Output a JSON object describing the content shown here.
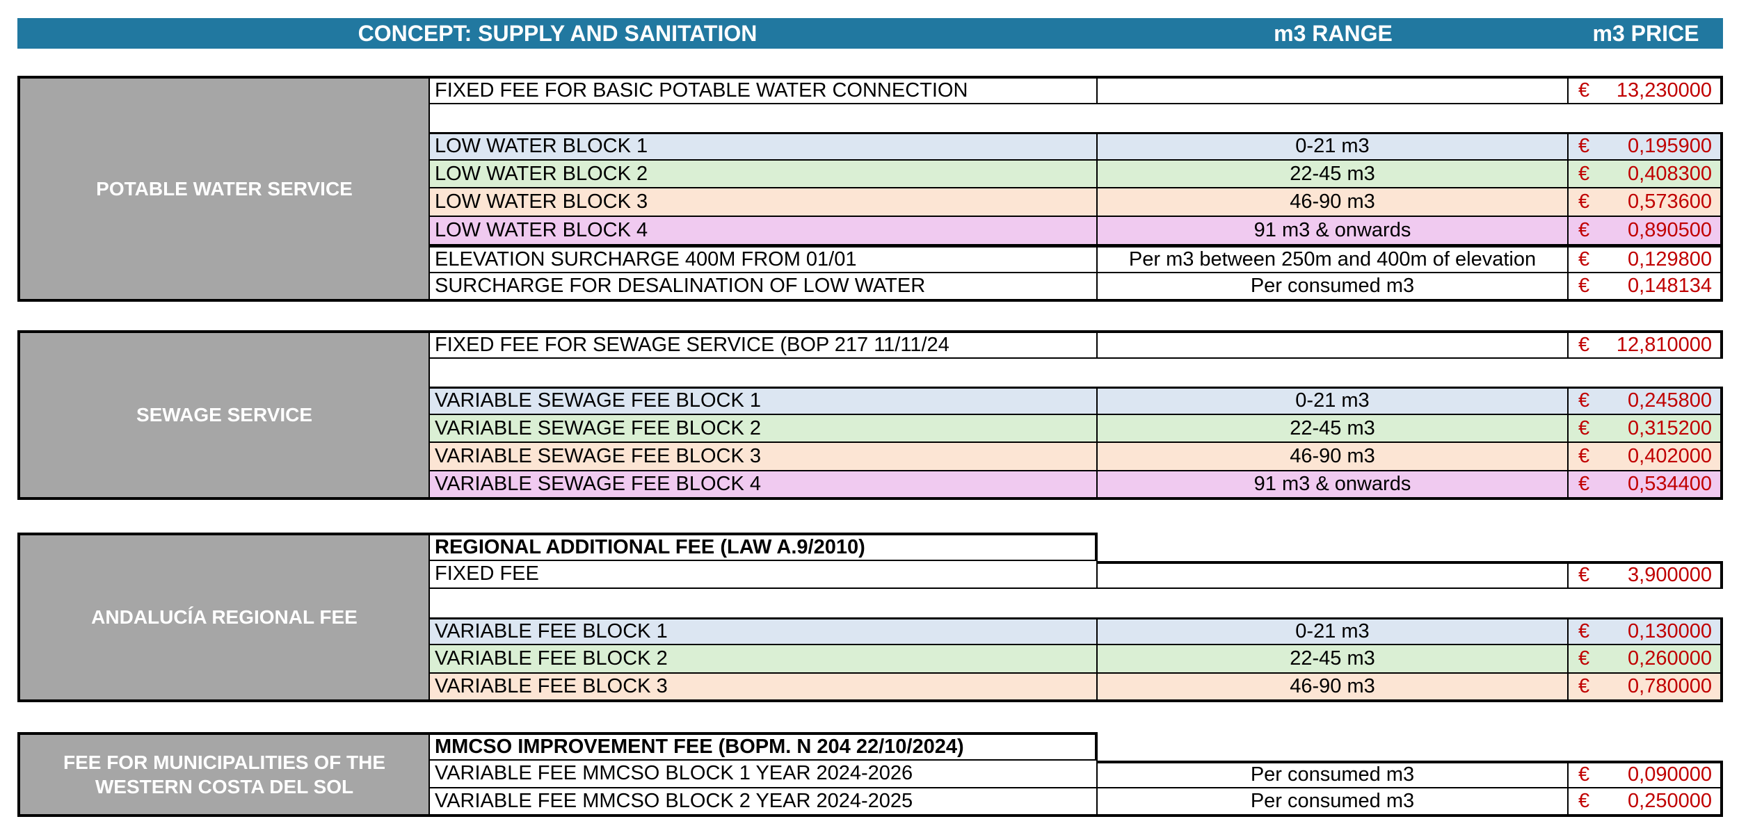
{
  "header": {
    "concept": "CONCEPT: SUPPLY AND SANITATION",
    "range_col": "m3 RANGE",
    "price_col": "m3 PRICE"
  },
  "currency": "€",
  "colors": {
    "header_bg": "#2178A0",
    "sidebar_bg": "#A6A6A6",
    "price_text": "#C00000",
    "row_blue": "#DCE6F2",
    "row_green": "#DAEFD4",
    "row_orange": "#FCE5D4",
    "row_pink": "#F0CAF0"
  },
  "sections": [
    {
      "title": "POTABLE WATER SERVICE",
      "rows": [
        {
          "type": "data",
          "desc": "FIXED FEE FOR BASIC POTABLE WATER CONNECTION",
          "range": "",
          "price": "13,230000",
          "bg": "white"
        },
        {
          "type": "empty"
        },
        {
          "type": "data",
          "desc": "LOW WATER BLOCK 1",
          "range": "0-21 m3",
          "price": "0,195900",
          "bg": "blue",
          "thick_top": true
        },
        {
          "type": "data",
          "desc": "LOW WATER BLOCK 2",
          "range": "22-45 m3",
          "price": "0,408300",
          "bg": "green"
        },
        {
          "type": "data",
          "desc": "LOW WATER BLOCK 3",
          "range": "46-90 m3",
          "price": "0,573600",
          "bg": "orange"
        },
        {
          "type": "data",
          "desc": "LOW WATER BLOCK 4",
          "range": "91 m3 & onwards",
          "price": "0,890500",
          "bg": "pink"
        },
        {
          "type": "data",
          "desc": "ELEVATION SURCHARGE 400M FROM 01/01",
          "range": "Per m3 between 250m and 400m of elevation",
          "price": "0,129800",
          "bg": "white",
          "thick_top": true
        },
        {
          "type": "data",
          "desc": "SURCHARGE FOR DESALINATION OF LOW WATER",
          "range": "Per consumed m3",
          "price": "0,148134",
          "bg": "white"
        }
      ]
    },
    {
      "title": "SEWAGE SERVICE",
      "rows": [
        {
          "type": "data",
          "desc": "FIXED FEE FOR SEWAGE SERVICE (BOP 217 11/11/24",
          "range": "",
          "price": "12,810000",
          "bg": "white"
        },
        {
          "type": "empty"
        },
        {
          "type": "data",
          "desc": "VARIABLE SEWAGE FEE BLOCK 1",
          "range": "0-21 m3",
          "price": "0,245800",
          "bg": "blue",
          "thick_top": true
        },
        {
          "type": "data",
          "desc": "VARIABLE SEWAGE FEE BLOCK 2",
          "range": "22-45 m3",
          "price": "0,315200",
          "bg": "green"
        },
        {
          "type": "data",
          "desc": "VARIABLE SEWAGE FEE BLOCK 3",
          "range": "46-90 m3",
          "price": "0,402000",
          "bg": "orange"
        },
        {
          "type": "data",
          "desc": "VARIABLE SEWAGE FEE BLOCK 4",
          "range": "91 m3 & onwards",
          "price": "0,534400",
          "bg": "pink"
        }
      ]
    },
    {
      "title": "ANDALUCÍA REGIONAL FEE",
      "rows": [
        {
          "type": "label",
          "desc": "REGIONAL ADDITIONAL FEE (LAW A.9/2010)"
        },
        {
          "type": "data",
          "desc": "FIXED FEE",
          "range": "",
          "price": "3,900000",
          "bg": "white",
          "outer_top_right": true
        },
        {
          "type": "empty"
        },
        {
          "type": "data",
          "desc": "VARIABLE FEE BLOCK 1",
          "range": "0-21 m3",
          "price": "0,130000",
          "bg": "blue",
          "thick_top": true
        },
        {
          "type": "data",
          "desc": "VARIABLE FEE BLOCK 2",
          "range": "22-45 m3",
          "price": "0,260000",
          "bg": "green"
        },
        {
          "type": "data",
          "desc": "VARIABLE FEE BLOCK 3",
          "range": "46-90 m3",
          "price": "0,780000",
          "bg": "orange"
        }
      ]
    },
    {
      "title": "FEE FOR MUNICIPALITIES OF THE WESTERN COSTA DEL SOL",
      "rows": [
        {
          "type": "label",
          "desc": "MMCSO IMPROVEMENT FEE (BOPM. N 204 22/10/2024)"
        },
        {
          "type": "data",
          "desc": "VARIABLE FEE MMCSO BLOCK 1 YEAR 2024-2026",
          "range": "Per consumed m3",
          "price": "0,090000",
          "bg": "white",
          "outer_top_right": true
        },
        {
          "type": "data",
          "desc": "VARIABLE FEE MMCSO BLOCK 2 YEAR 2024-2025",
          "range": "Per consumed m3",
          "price": "0,250000",
          "bg": "white"
        }
      ]
    }
  ]
}
